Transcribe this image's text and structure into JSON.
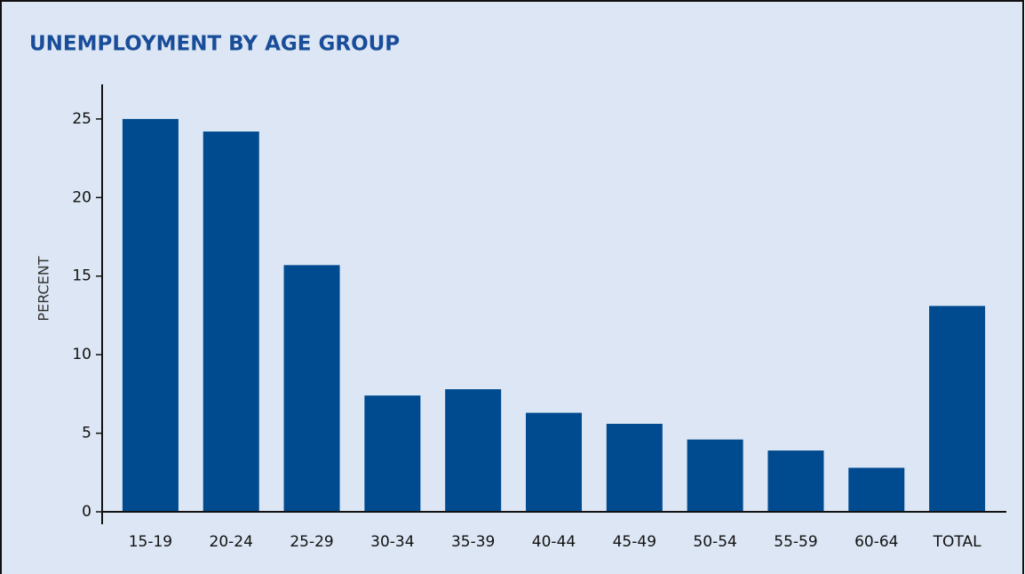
{
  "chart_data": {
    "type": "bar",
    "title": "UNEMPLOYMENT BY AGE GROUP",
    "y_label": "PERCENT",
    "categories": [
      "15-19",
      "20-24",
      "25-29",
      "30-34",
      "35-39",
      "40-44",
      "45-49",
      "50-54",
      "55-59",
      "60-64",
      "TOTAL"
    ],
    "values": [
      25.0,
      24.2,
      15.7,
      7.4,
      7.8,
      6.3,
      5.6,
      4.6,
      3.9,
      2.8,
      13.1
    ],
    "color": "#004a8f",
    "ylim": [
      0,
      27.2
    ],
    "yticks": [
      0,
      5,
      10,
      15,
      20,
      25
    ],
    "grid": false
  }
}
